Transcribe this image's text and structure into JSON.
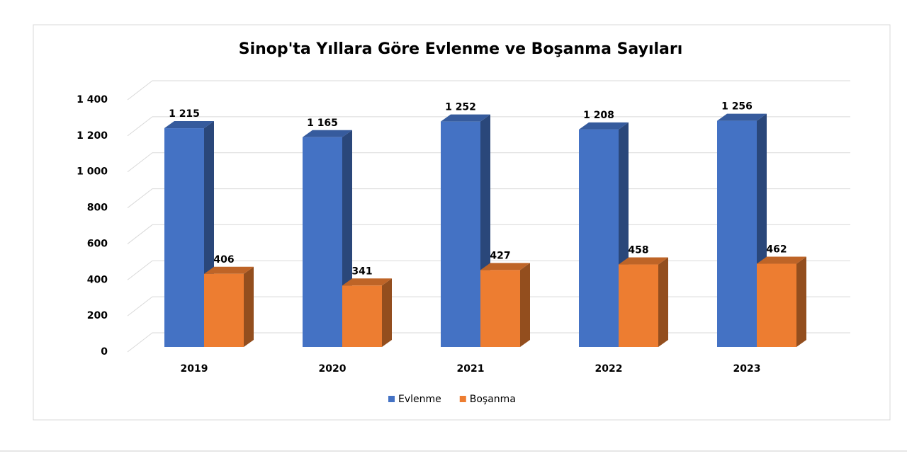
{
  "chart_data": {
    "type": "bar3d",
    "title": "Sinop'ta Yıllara Göre Evlenme ve Boşanma Sayıları",
    "categories": [
      "2019",
      "2020",
      "2021",
      "2022",
      "2023"
    ],
    "series": [
      {
        "name": "Evlenme",
        "color": "#4472c4",
        "values": [
          1215,
          1165,
          1252,
          1208,
          1256
        ],
        "value_labels": [
          "1 215",
          "1 165",
          "1 252",
          "1 208",
          "1 256"
        ]
      },
      {
        "name": "Boşanma",
        "color": "#ed7d31",
        "values": [
          406,
          341,
          427,
          458,
          462
        ]
      }
    ],
    "ylim": [
      0,
      1400
    ],
    "yticks": [
      0,
      200,
      400,
      600,
      800,
      {
        "value": 1000,
        "label": "1 000"
      },
      {
        "value": 1200,
        "label": "1 200"
      },
      {
        "value": 1400,
        "label": "1 400"
      }
    ],
    "grid": true,
    "legend": "bottom"
  }
}
